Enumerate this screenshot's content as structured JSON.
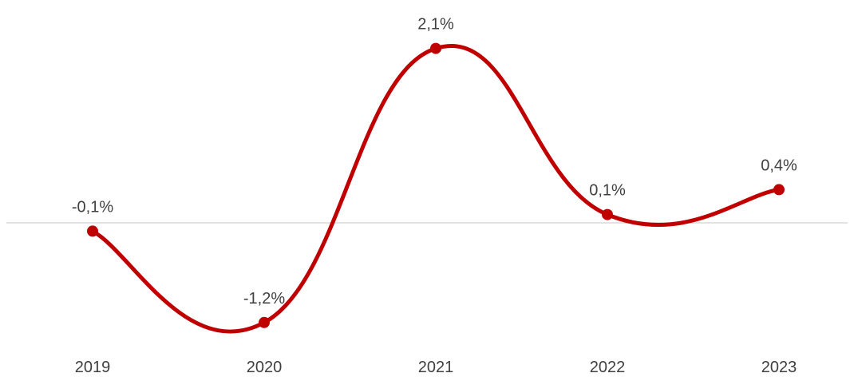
{
  "chart_data": {
    "type": "line",
    "smooth": true,
    "categories": [
      "2019",
      "2020",
      "2021",
      "2022",
      "2023"
    ],
    "series": [
      {
        "values": [
          -0.1,
          -1.2,
          2.1,
          0.1,
          0.4
        ],
        "labels": [
          "-0,1%",
          "-1,2%",
          "2,1%",
          "0,1%",
          "0,4%"
        ],
        "color": "#C00000"
      }
    ],
    "zero_line_color": "#D9D9D9",
    "text_color": "#404040",
    "ylim": [
      -1.5,
      2.5
    ],
    "grid": false,
    "legend": "none"
  }
}
